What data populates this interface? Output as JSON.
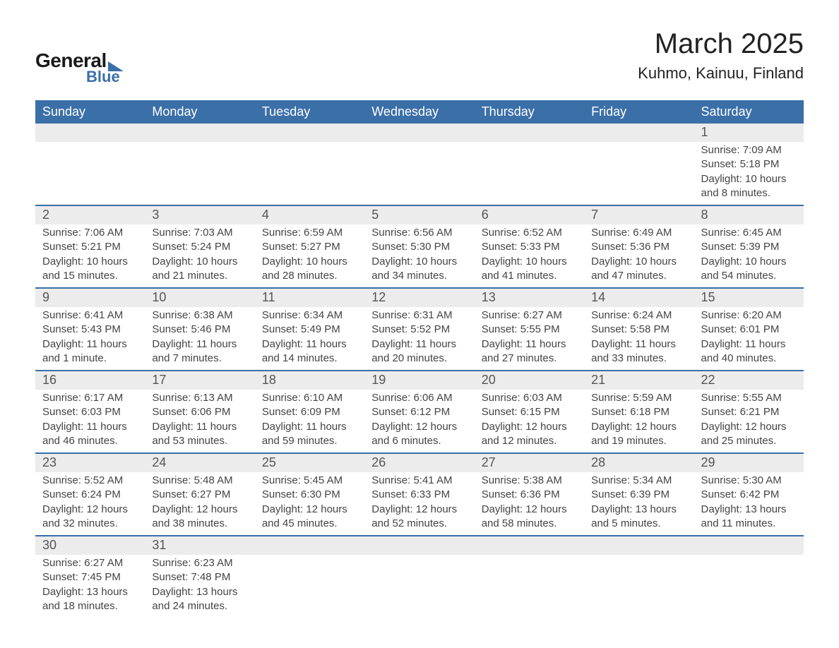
{
  "logo": {
    "text_top": "General",
    "text_bottom": "Blue"
  },
  "header": {
    "month_title": "March 2025",
    "location": "Kuhmo, Kainuu, Finland"
  },
  "styling": {
    "header_bg": "#3b6fa8",
    "header_fg": "#ffffff",
    "daynum_bg": "#ececec",
    "row_divider": "#3b6fa8",
    "body_bg": "#ffffff",
    "text_color": "#333333",
    "font_family": "Arial",
    "month_title_fontsize": 40,
    "location_fontsize": 22,
    "header_fontsize": 18,
    "daynum_fontsize": 18,
    "body_fontsize": 15
  },
  "calendar": {
    "type": "table",
    "columns": [
      "Sunday",
      "Monday",
      "Tuesday",
      "Wednesday",
      "Thursday",
      "Friday",
      "Saturday"
    ],
    "weeks": [
      [
        {
          "day": "",
          "sunrise": "",
          "sunset": "",
          "daylight": ""
        },
        {
          "day": "",
          "sunrise": "",
          "sunset": "",
          "daylight": ""
        },
        {
          "day": "",
          "sunrise": "",
          "sunset": "",
          "daylight": ""
        },
        {
          "day": "",
          "sunrise": "",
          "sunset": "",
          "daylight": ""
        },
        {
          "day": "",
          "sunrise": "",
          "sunset": "",
          "daylight": ""
        },
        {
          "day": "",
          "sunrise": "",
          "sunset": "",
          "daylight": ""
        },
        {
          "day": "1",
          "sunrise": "Sunrise: 7:09 AM",
          "sunset": "Sunset: 5:18 PM",
          "daylight": "Daylight: 10 hours and 8 minutes."
        }
      ],
      [
        {
          "day": "2",
          "sunrise": "Sunrise: 7:06 AM",
          "sunset": "Sunset: 5:21 PM",
          "daylight": "Daylight: 10 hours and 15 minutes."
        },
        {
          "day": "3",
          "sunrise": "Sunrise: 7:03 AM",
          "sunset": "Sunset: 5:24 PM",
          "daylight": "Daylight: 10 hours and 21 minutes."
        },
        {
          "day": "4",
          "sunrise": "Sunrise: 6:59 AM",
          "sunset": "Sunset: 5:27 PM",
          "daylight": "Daylight: 10 hours and 28 minutes."
        },
        {
          "day": "5",
          "sunrise": "Sunrise: 6:56 AM",
          "sunset": "Sunset: 5:30 PM",
          "daylight": "Daylight: 10 hours and 34 minutes."
        },
        {
          "day": "6",
          "sunrise": "Sunrise: 6:52 AM",
          "sunset": "Sunset: 5:33 PM",
          "daylight": "Daylight: 10 hours and 41 minutes."
        },
        {
          "day": "7",
          "sunrise": "Sunrise: 6:49 AM",
          "sunset": "Sunset: 5:36 PM",
          "daylight": "Daylight: 10 hours and 47 minutes."
        },
        {
          "day": "8",
          "sunrise": "Sunrise: 6:45 AM",
          "sunset": "Sunset: 5:39 PM",
          "daylight": "Daylight: 10 hours and 54 minutes."
        }
      ],
      [
        {
          "day": "9",
          "sunrise": "Sunrise: 6:41 AM",
          "sunset": "Sunset: 5:43 PM",
          "daylight": "Daylight: 11 hours and 1 minute."
        },
        {
          "day": "10",
          "sunrise": "Sunrise: 6:38 AM",
          "sunset": "Sunset: 5:46 PM",
          "daylight": "Daylight: 11 hours and 7 minutes."
        },
        {
          "day": "11",
          "sunrise": "Sunrise: 6:34 AM",
          "sunset": "Sunset: 5:49 PM",
          "daylight": "Daylight: 11 hours and 14 minutes."
        },
        {
          "day": "12",
          "sunrise": "Sunrise: 6:31 AM",
          "sunset": "Sunset: 5:52 PM",
          "daylight": "Daylight: 11 hours and 20 minutes."
        },
        {
          "day": "13",
          "sunrise": "Sunrise: 6:27 AM",
          "sunset": "Sunset: 5:55 PM",
          "daylight": "Daylight: 11 hours and 27 minutes."
        },
        {
          "day": "14",
          "sunrise": "Sunrise: 6:24 AM",
          "sunset": "Sunset: 5:58 PM",
          "daylight": "Daylight: 11 hours and 33 minutes."
        },
        {
          "day": "15",
          "sunrise": "Sunrise: 6:20 AM",
          "sunset": "Sunset: 6:01 PM",
          "daylight": "Daylight: 11 hours and 40 minutes."
        }
      ],
      [
        {
          "day": "16",
          "sunrise": "Sunrise: 6:17 AM",
          "sunset": "Sunset: 6:03 PM",
          "daylight": "Daylight: 11 hours and 46 minutes."
        },
        {
          "day": "17",
          "sunrise": "Sunrise: 6:13 AM",
          "sunset": "Sunset: 6:06 PM",
          "daylight": "Daylight: 11 hours and 53 minutes."
        },
        {
          "day": "18",
          "sunrise": "Sunrise: 6:10 AM",
          "sunset": "Sunset: 6:09 PM",
          "daylight": "Daylight: 11 hours and 59 minutes."
        },
        {
          "day": "19",
          "sunrise": "Sunrise: 6:06 AM",
          "sunset": "Sunset: 6:12 PM",
          "daylight": "Daylight: 12 hours and 6 minutes."
        },
        {
          "day": "20",
          "sunrise": "Sunrise: 6:03 AM",
          "sunset": "Sunset: 6:15 PM",
          "daylight": "Daylight: 12 hours and 12 minutes."
        },
        {
          "day": "21",
          "sunrise": "Sunrise: 5:59 AM",
          "sunset": "Sunset: 6:18 PM",
          "daylight": "Daylight: 12 hours and 19 minutes."
        },
        {
          "day": "22",
          "sunrise": "Sunrise: 5:55 AM",
          "sunset": "Sunset: 6:21 PM",
          "daylight": "Daylight: 12 hours and 25 minutes."
        }
      ],
      [
        {
          "day": "23",
          "sunrise": "Sunrise: 5:52 AM",
          "sunset": "Sunset: 6:24 PM",
          "daylight": "Daylight: 12 hours and 32 minutes."
        },
        {
          "day": "24",
          "sunrise": "Sunrise: 5:48 AM",
          "sunset": "Sunset: 6:27 PM",
          "daylight": "Daylight: 12 hours and 38 minutes."
        },
        {
          "day": "25",
          "sunrise": "Sunrise: 5:45 AM",
          "sunset": "Sunset: 6:30 PM",
          "daylight": "Daylight: 12 hours and 45 minutes."
        },
        {
          "day": "26",
          "sunrise": "Sunrise: 5:41 AM",
          "sunset": "Sunset: 6:33 PM",
          "daylight": "Daylight: 12 hours and 52 minutes."
        },
        {
          "day": "27",
          "sunrise": "Sunrise: 5:38 AM",
          "sunset": "Sunset: 6:36 PM",
          "daylight": "Daylight: 12 hours and 58 minutes."
        },
        {
          "day": "28",
          "sunrise": "Sunrise: 5:34 AM",
          "sunset": "Sunset: 6:39 PM",
          "daylight": "Daylight: 13 hours and 5 minutes."
        },
        {
          "day": "29",
          "sunrise": "Sunrise: 5:30 AM",
          "sunset": "Sunset: 6:42 PM",
          "daylight": "Daylight: 13 hours and 11 minutes."
        }
      ],
      [
        {
          "day": "30",
          "sunrise": "Sunrise: 6:27 AM",
          "sunset": "Sunset: 7:45 PM",
          "daylight": "Daylight: 13 hours and 18 minutes."
        },
        {
          "day": "31",
          "sunrise": "Sunrise: 6:23 AM",
          "sunset": "Sunset: 7:48 PM",
          "daylight": "Daylight: 13 hours and 24 minutes."
        },
        {
          "day": "",
          "sunrise": "",
          "sunset": "",
          "daylight": ""
        },
        {
          "day": "",
          "sunrise": "",
          "sunset": "",
          "daylight": ""
        },
        {
          "day": "",
          "sunrise": "",
          "sunset": "",
          "daylight": ""
        },
        {
          "day": "",
          "sunrise": "",
          "sunset": "",
          "daylight": ""
        },
        {
          "day": "",
          "sunrise": "",
          "sunset": "",
          "daylight": ""
        }
      ]
    ]
  }
}
